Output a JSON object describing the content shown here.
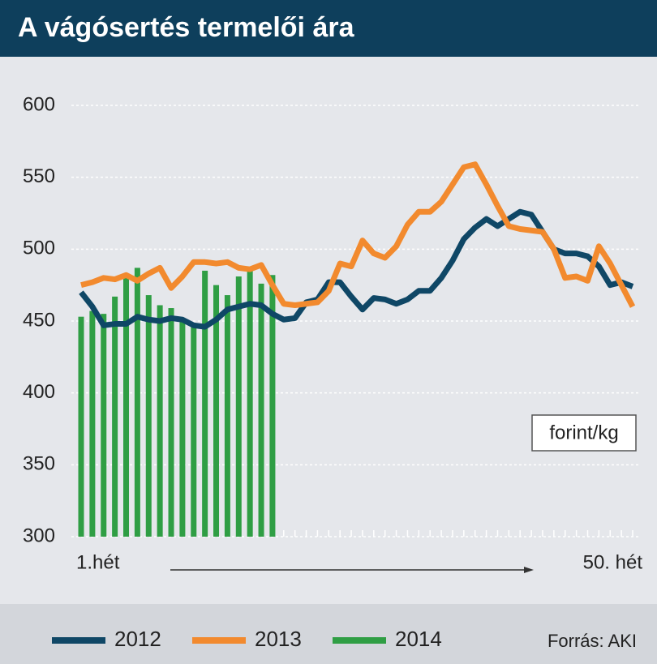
{
  "chart_data": {
    "type": "line",
    "title": "A vágósertés termelői ára",
    "unit_label": "forint/kg",
    "source": "Forrás: AKI",
    "categories": [
      "1.hét",
      null,
      null,
      null,
      null,
      null,
      null,
      null,
      null,
      null,
      null,
      null,
      null,
      null,
      null,
      null,
      null,
      null,
      null,
      null,
      null,
      null,
      null,
      null,
      null,
      null,
      null,
      null,
      null,
      null,
      null,
      null,
      null,
      null,
      null,
      null,
      null,
      null,
      null,
      null,
      null,
      null,
      null,
      null,
      null,
      null,
      null,
      null,
      null,
      "50. hét"
    ],
    "ylim": [
      300,
      600
    ],
    "yticks": [
      300,
      350,
      400,
      450,
      500,
      550,
      600
    ],
    "grid": true,
    "legend": "bottom",
    "series": [
      {
        "name": "2012",
        "color": "#0f4766",
        "values": [
          470,
          460,
          447,
          448,
          448,
          453,
          451,
          450,
          452,
          451,
          447,
          446,
          451,
          458,
          460,
          462,
          461,
          455,
          451,
          452,
          463,
          465,
          477,
          477,
          467,
          458,
          466,
          465,
          462,
          465,
          471,
          471,
          480,
          492,
          507,
          515,
          521,
          516,
          521,
          526,
          524,
          512,
          500,
          497,
          497,
          495,
          488,
          475,
          477,
          474
        ]
      },
      {
        "name": "2013",
        "color": "#f28a2e",
        "values": [
          475,
          477,
          480,
          479,
          482,
          478,
          483,
          487,
          473,
          481,
          491,
          491,
          490,
          491,
          487,
          486,
          489,
          475,
          462,
          461,
          462,
          463,
          471,
          490,
          488,
          506,
          497,
          494,
          502,
          517,
          526,
          526,
          533,
          545,
          557,
          559,
          545,
          530,
          516,
          514,
          513,
          512,
          500,
          480,
          481,
          478,
          502,
          490,
          475,
          460
        ]
      },
      {
        "name": "2014",
        "color": "#2f9e44",
        "type": "bar",
        "values": [
          453,
          457,
          455,
          467,
          481,
          487,
          468,
          461,
          459,
          450,
          447,
          485,
          475,
          468,
          481,
          487,
          476,
          482,
          null,
          null,
          null,
          null,
          null,
          null,
          null,
          null,
          null,
          null,
          null,
          null,
          null,
          null,
          null,
          null,
          null,
          null,
          null,
          null,
          null,
          null,
          null,
          null,
          null,
          null,
          null,
          null,
          null,
          null,
          null,
          null
        ]
      }
    ]
  }
}
